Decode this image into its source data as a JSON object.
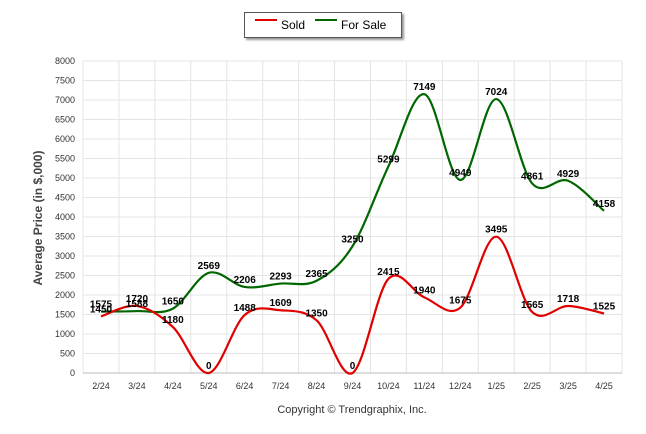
{
  "chart_data": {
    "type": "line",
    "categories": [
      "2/24",
      "3/24",
      "4/24",
      "5/24",
      "6/24",
      "7/24",
      "8/24",
      "9/24",
      "10/24",
      "11/24",
      "12/24",
      "1/25",
      "2/25",
      "3/25",
      "4/25"
    ],
    "series": [
      {
        "name": "Sold",
        "color": "#e00000",
        "values": [
          1450,
          1720,
          1180,
          0,
          1488,
          1609,
          1350,
          0,
          2415,
          1940,
          1675,
          3495,
          1565,
          1718,
          1525
        ]
      },
      {
        "name": "For Sale",
        "color": "#006600",
        "values": [
          1575,
          1588,
          1650,
          2569,
          2206,
          2293,
          2365,
          3250,
          5299,
          7149,
          4949,
          7024,
          4861,
          4929,
          4158
        ]
      }
    ],
    "ylabel": "Average Price (in $,000)",
    "ylim": [
      0,
      8000
    ],
    "yticks": [
      0,
      500,
      1000,
      1500,
      2000,
      2500,
      3000,
      3500,
      4000,
      4500,
      5000,
      5500,
      6000,
      6500,
      7000,
      7500,
      8000
    ],
    "grid": true,
    "legend": "top-center",
    "credit": "Copyright © Trendgraphix, Inc."
  }
}
